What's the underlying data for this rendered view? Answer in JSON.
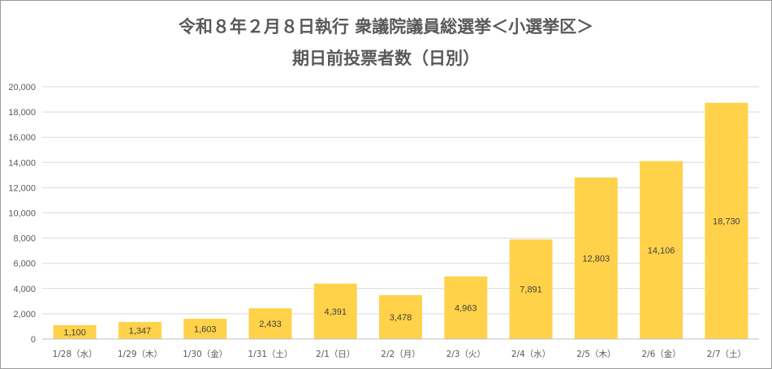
{
  "chart_data": {
    "type": "bar",
    "title": "令和８年２月８日執行 衆議院議員総選挙＜小選挙区＞",
    "subtitle": "期日前投票者数（日別）",
    "categories": [
      "1/28（水）",
      "1/29（木）",
      "1/30（金）",
      "1/31（土）",
      "2/1（日）",
      "2/2（月）",
      "2/3（火）",
      "2/4（水）",
      "2/5（木）",
      "2/6（金）",
      "2/7（土）"
    ],
    "values": [
      1100,
      1347,
      1603,
      2433,
      4391,
      3478,
      4963,
      7891,
      12803,
      14106,
      18730
    ],
    "value_labels": [
      "1,100",
      "1,347",
      "1,603",
      "2,433",
      "4,391",
      "3,478",
      "4,963",
      "7,891",
      "12,803",
      "14,106",
      "18,730"
    ],
    "ylim": [
      0,
      20000
    ],
    "yticks": [
      0,
      2000,
      4000,
      6000,
      8000,
      10000,
      12000,
      14000,
      16000,
      18000,
      20000
    ],
    "ytick_labels": [
      "0",
      "2,000",
      "4,000",
      "6,000",
      "8,000",
      "10,000",
      "12,000",
      "14,000",
      "16,000",
      "18,000",
      "20,000"
    ],
    "grid": true,
    "legend": "none",
    "bar_color": "#FFD24A",
    "grid_color": "#d9d9d9"
  }
}
